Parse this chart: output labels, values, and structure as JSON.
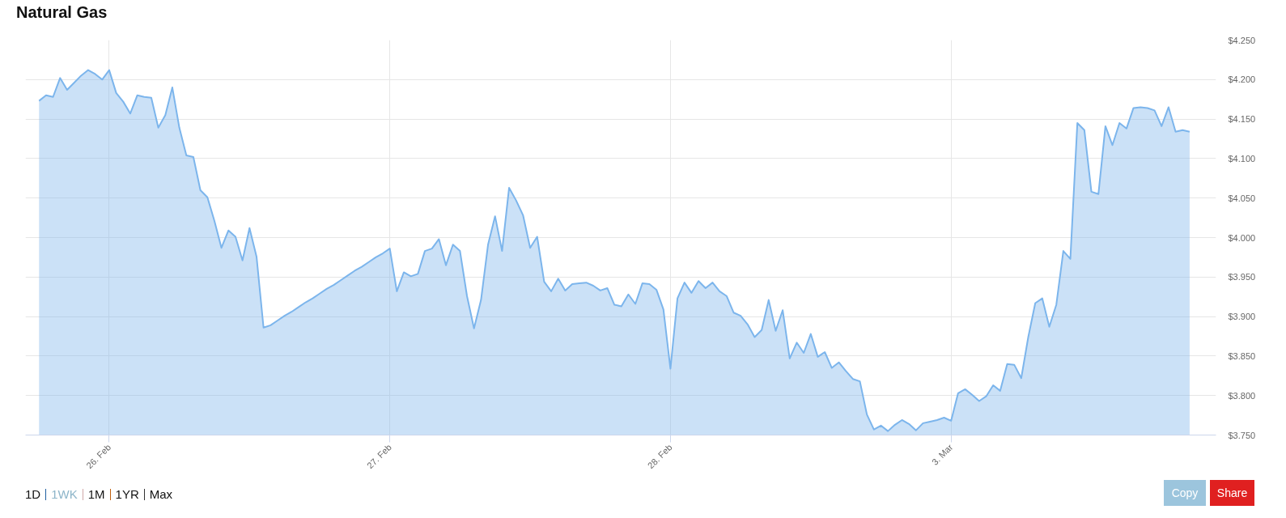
{
  "chart_data": {
    "type": "area",
    "title": "Natural Gas",
    "color": "#7cb5ec",
    "categories": [
      null,
      null,
      null,
      null,
      null,
      null,
      null,
      null,
      null,
      null,
      "26. Feb",
      null,
      null,
      null,
      null,
      null,
      null,
      null,
      null,
      null,
      null,
      null,
      null,
      null,
      null,
      null,
      null,
      null,
      null,
      null,
      null,
      null,
      null,
      null,
      null,
      null,
      null,
      null,
      null,
      null,
      null,
      null,
      null,
      null,
      null,
      null,
      null,
      null,
      null,
      null,
      "27. Feb",
      null,
      null,
      null,
      null,
      null,
      null,
      null,
      null,
      null,
      null,
      null,
      null,
      null,
      null,
      null,
      null,
      null,
      null,
      null,
      null,
      null,
      null,
      null,
      null,
      null,
      null,
      null,
      null,
      null,
      null,
      null,
      null,
      null,
      null,
      null,
      null,
      null,
      null,
      null,
      "28. Feb",
      null,
      null,
      null,
      null,
      null,
      null,
      null,
      null,
      null,
      null,
      null,
      null,
      null,
      null,
      null,
      null,
      null,
      null,
      null,
      null,
      null,
      null,
      null,
      null,
      null,
      null,
      null,
      null,
      null,
      null,
      null,
      null,
      null,
      null,
      null,
      null,
      null,
      null,
      null,
      "3. Mar",
      null,
      null,
      null,
      null,
      null,
      null,
      null,
      null,
      null,
      null,
      null,
      null,
      null,
      null,
      null,
      null,
      null,
      null,
      null,
      null,
      null,
      null,
      null,
      null,
      null,
      null,
      null,
      null,
      null,
      null,
      null,
      null,
      null,
      null
    ],
    "values": [
      4.173,
      4.18,
      4.178,
      4.202,
      4.187,
      4.196,
      4.205,
      4.212,
      4.207,
      4.2,
      4.212,
      4.183,
      4.172,
      4.157,
      4.18,
      4.178,
      4.177,
      4.139,
      4.155,
      4.19,
      4.139,
      4.104,
      4.102,
      4.06,
      4.051,
      4.021,
      3.987,
      4.009,
      4.001,
      3.971,
      4.012,
      3.976,
      3.886,
      3.889,
      3.895,
      3.901,
      3.906,
      3.912,
      3.918,
      3.923,
      3.929,
      3.935,
      3.94,
      3.946,
      3.952,
      3.958,
      3.963,
      3.969,
      3.975,
      3.98,
      3.986,
      3.932,
      3.956,
      3.951,
      3.954,
      3.983,
      3.986,
      3.998,
      3.965,
      3.991,
      3.983,
      3.926,
      3.885,
      3.921,
      3.991,
      4.027,
      3.983,
      4.063,
      4.047,
      4.028,
      3.987,
      4.001,
      3.944,
      3.932,
      3.948,
      3.933,
      3.941,
      3.942,
      3.943,
      3.939,
      3.933,
      3.936,
      3.915,
      3.913,
      3.928,
      3.916,
      3.942,
      3.941,
      3.934,
      3.909,
      3.834,
      3.923,
      3.943,
      3.93,
      3.945,
      3.936,
      3.943,
      3.932,
      3.926,
      3.905,
      3.901,
      3.89,
      3.874,
      3.883,
      3.921,
      3.882,
      3.908,
      3.847,
      3.867,
      3.854,
      3.878,
      3.849,
      3.855,
      3.835,
      3.842,
      3.831,
      3.821,
      3.818,
      3.776,
      3.757,
      3.762,
      3.755,
      3.763,
      3.769,
      3.764,
      3.756,
      3.765,
      3.767,
      3.769,
      3.772,
      3.768,
      3.803,
      3.808,
      3.801,
      3.793,
      3.799,
      3.813,
      3.806,
      3.84,
      3.839,
      3.822,
      3.874,
      3.917,
      3.923,
      3.887,
      3.915,
      3.983,
      3.973,
      4.145,
      4.136,
      4.058,
      4.055,
      4.141,
      4.117,
      4.145,
      4.138,
      4.164,
      4.165,
      4.164,
      4.161,
      4.141,
      4.165,
      4.134,
      4.136,
      4.134
    ],
    "ylim": [
      3.75,
      4.25
    ],
    "yticks": [
      {
        "value": 3.75,
        "label": "$3.750"
      },
      {
        "value": 3.8,
        "label": "$3.800"
      },
      {
        "value": 3.85,
        "label": "$3.850"
      },
      {
        "value": 3.9,
        "label": "$3.900"
      },
      {
        "value": 3.95,
        "label": "$3.950"
      },
      {
        "value": 4.0,
        "label": "$4.000"
      },
      {
        "value": 4.05,
        "label": "$4.050"
      },
      {
        "value": 4.1,
        "label": "$4.100"
      },
      {
        "value": 4.15,
        "label": "$4.150"
      },
      {
        "value": 4.2,
        "label": "$4.200"
      },
      {
        "value": 4.25,
        "label": "$4.250"
      }
    ],
    "grid": true,
    "annotations": [
      "1D",
      "1WK",
      "1M",
      "1YR",
      "Max",
      "Copy",
      "Share"
    ]
  }
}
